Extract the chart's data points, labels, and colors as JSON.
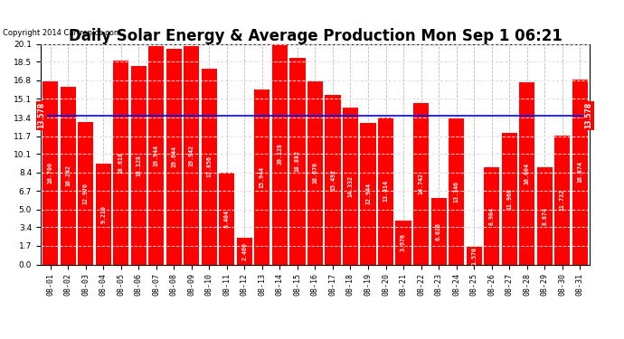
{
  "title": "Daily Solar Energy & Average Production Mon Sep 1 06:21",
  "copyright": "Copyright 2014 Cartronics.com",
  "average_value": 13.578,
  "average_label": "13.578",
  "bar_color": "#FF0000",
  "average_line_color": "#0000FF",
  "background_color": "#FFFFFF",
  "plot_bg_color": "#FFFFFF",
  "grid_color": "#BBBBBB",
  "dates": [
    "08-01",
    "08-02",
    "08-03",
    "08-04",
    "08-05",
    "08-06",
    "08-07",
    "08-08",
    "08-09",
    "08-10",
    "08-11",
    "08-12",
    "08-13",
    "08-14",
    "08-15",
    "08-16",
    "08-17",
    "08-18",
    "08-19",
    "08-20",
    "08-21",
    "08-22",
    "08-23",
    "08-24",
    "08-25",
    "08-26",
    "08-27",
    "08-28",
    "08-29",
    "08-30",
    "08-31"
  ],
  "values": [
    16.7,
    16.242,
    12.976,
    9.21,
    18.618,
    18.128,
    19.944,
    19.644,
    19.942,
    17.856,
    8.404,
    2.466,
    15.944,
    20.128,
    18.882,
    16.67,
    15.492,
    14.332,
    12.944,
    13.414,
    3.976,
    14.742,
    6.026,
    13.346,
    1.576,
    8.904,
    11.968,
    16.604,
    8.874,
    11.732,
    16.874
  ],
  "ylim": [
    0.0,
    20.1
  ],
  "yticks": [
    0.0,
    1.7,
    3.4,
    5.0,
    6.7,
    8.4,
    10.1,
    11.7,
    13.4,
    15.1,
    16.8,
    18.5,
    20.1
  ],
  "title_fontsize": 12,
  "bar_width": 0.88
}
